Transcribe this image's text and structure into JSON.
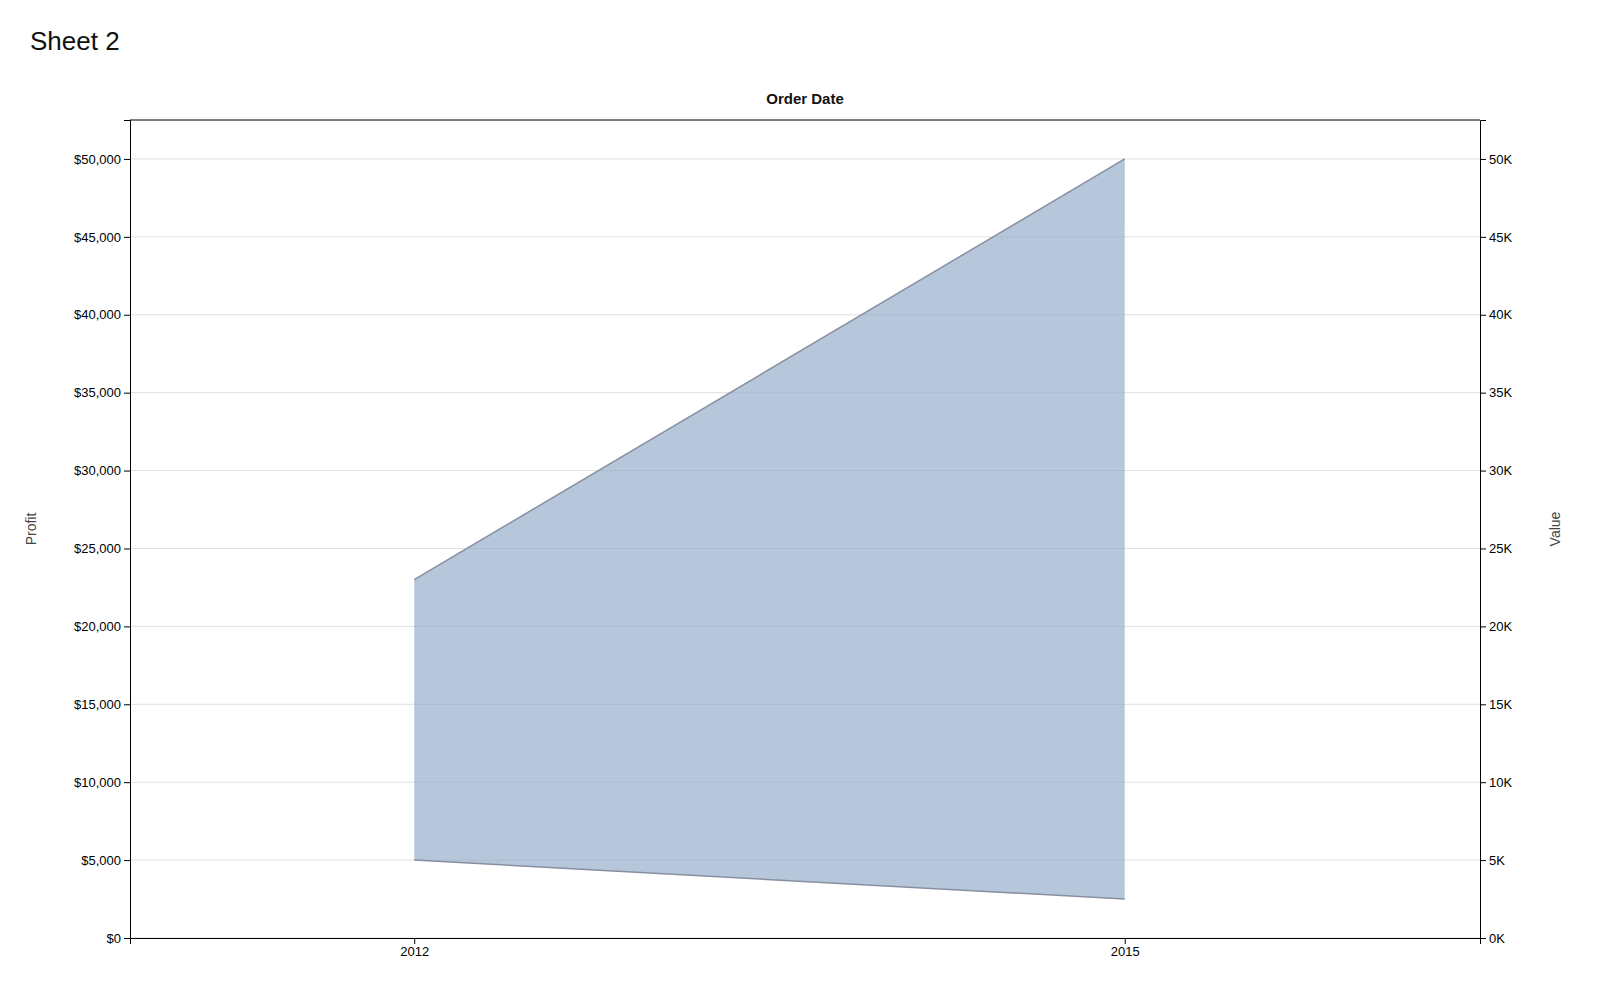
{
  "chart_data": {
    "type": "area",
    "title": "Sheet 2",
    "x_label": "Order Date",
    "y_label": "Profit",
    "y2_label": "Value",
    "x": [
      2012,
      2015
    ],
    "color": "#8fa8c8",
    "series": [
      {
        "color": "#888fa0",
        "values": [
          5000,
          2500
        ]
      },
      {
        "color": "#888fa0",
        "values": [
          23000,
          50000
        ]
      }
    ],
    "xlim": [
      2010.8,
      2016.5
    ],
    "xticks": [
      2012,
      2015
    ],
    "ylim": [
      0,
      52500
    ],
    "yticks": [
      {
        "value": 0,
        "label": "$0"
      },
      {
        "value": 5000,
        "label": "$5,000"
      },
      {
        "value": 10000,
        "label": "$10,000"
      },
      {
        "value": 15000,
        "label": "$15,000"
      },
      {
        "value": 20000,
        "label": "$20,000"
      },
      {
        "value": 25000,
        "label": "$25,000"
      },
      {
        "value": 30000,
        "label": "$30,000"
      },
      {
        "value": 35000,
        "label": "$35,000"
      },
      {
        "value": 40000,
        "label": "$40,000"
      },
      {
        "value": 45000,
        "label": "$45,000"
      },
      {
        "value": 50000,
        "label": "$50,000"
      }
    ],
    "y2lim": [
      0,
      52500
    ],
    "y2ticks": [
      {
        "value": 0,
        "label": "0K"
      },
      {
        "value": 5000,
        "label": "5K"
      },
      {
        "value": 10000,
        "label": "10K"
      },
      {
        "value": 15000,
        "label": "15K"
      },
      {
        "value": 20000,
        "label": "20K"
      },
      {
        "value": 25000,
        "label": "25K"
      },
      {
        "value": 30000,
        "label": "30K"
      },
      {
        "value": 35000,
        "label": "35K"
      },
      {
        "value": 40000,
        "label": "40K"
      },
      {
        "value": 45000,
        "label": "45K"
      },
      {
        "value": 50000,
        "label": "50K"
      }
    ],
    "grid": true
  }
}
